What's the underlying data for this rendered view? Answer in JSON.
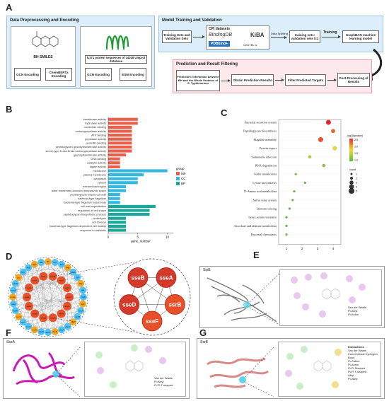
{
  "panel_labels": {
    "a": "A",
    "b": "B",
    "c": "C",
    "d": "D",
    "e": "E",
    "f": "F",
    "g": "G"
  },
  "panelA": {
    "prep_title": "Data Preprocessing and Encoding",
    "bh_smiles": "BH SMILES",
    "gcn1": "GCN Encoding",
    "chemberta": "ChemBERTa Encoding",
    "protein_seq": "5,371 protein sequences of 14028 Uniprot database",
    "gcn2": "GCN Encoding",
    "esm": "ESM Encoding",
    "train_title": "Model Training and Validation",
    "train_sets": "Training Sets and Validation Sets",
    "cpi": "CPI datasets",
    "bindingdb": "BindingDB",
    "pdbbind": "PDBbind+",
    "kiba": "KiBA",
    "castp": "CASTBL is",
    "data_split": "Data Splitting",
    "training": "Training",
    "ratio": "training sets: validation sets 8:2",
    "graphban": "GraphBAN machine learning model",
    "pred_title": "Prediction and Result Filtering",
    "prediction": "Prediction: Interaction between BH and the Whole Proteins of S. Typhimurium",
    "obtain": "Obtain Prediction Results",
    "filter": "Filter Predicted Targets",
    "post": "Post-Processing of Results"
  },
  "panelB": {
    "xlabel": "gene_number",
    "legend_title": "group",
    "legend": [
      "MF",
      "CC",
      "BP"
    ],
    "colors": {
      "MF": "#e8604c",
      "CC": "#35b8e0",
      "BP": "#1ba89a"
    },
    "xticks": [
      "0",
      "5",
      "10"
    ]
  },
  "panelC": {
    "legend1_title": "-log10(pvalue)",
    "legend2_title": "count",
    "legend1_ticks": [
      "2.5",
      "2.0",
      "1.5",
      "1.0"
    ],
    "legend2_ticks": [
      "1",
      "2",
      "3",
      "4",
      "5"
    ],
    "xticks": [
      "1",
      "2",
      "3",
      "4"
    ]
  },
  "chart_data": [
    {
      "type": "bar",
      "orientation": "horizontal",
      "xlabel": "gene_number",
      "xlim": [
        0,
        11
      ],
      "categories": [
        "transferase activity",
        "hydrolase activity",
        "nucleotide binding",
        "carboxypeptidase activity",
        "ATP binding",
        "peptidase activity",
        "penicillin binding",
        "peptidoglycan glycosyltransferase activity",
        "serine-type D-Ala-D-Ala carboxypeptidase activity",
        "glycosyltransferase activity",
        "DNA binding",
        "catalytic activity",
        "ligase activity",
        "membrane",
        "plasma membrane",
        "cytoplasm",
        "cytosol",
        "extracellular region",
        "outer membrane-bounded periplasmic space",
        "peptidoglycan-based cell wall",
        "bacterial-type flagellum",
        "bacterial-type flagellum basal body",
        "cell wall organization",
        "regulation of cell shape",
        "peptidoglycan biosynthetic process",
        "proteolysis",
        "cell division",
        "bacterial-type flagellum-dependent cell motility",
        "response to antibiotic"
      ],
      "series": [
        {
          "name": "group",
          "values": [
            5,
            5,
            4,
            4,
            4,
            4,
            4,
            4,
            4,
            3,
            2,
            2,
            2,
            10,
            6,
            5,
            5,
            3,
            3,
            2,
            2,
            2,
            8,
            7,
            7,
            3,
            3,
            3,
            3
          ]
        }
      ],
      "groups": [
        "MF",
        "MF",
        "MF",
        "MF",
        "MF",
        "MF",
        "MF",
        "MF",
        "MF",
        "MF",
        "MF",
        "MF",
        "MF",
        "CC",
        "CC",
        "CC",
        "CC",
        "CC",
        "CC",
        "CC",
        "CC",
        "CC",
        "BP",
        "BP",
        "BP",
        "BP",
        "BP",
        "BP",
        "BP"
      ]
    },
    {
      "type": "scatter",
      "xlim": [
        0.5,
        4.5
      ],
      "categories": [
        "Bacterial secretion system",
        "Peptidoglycan biosynthesis",
        "Flagellar assembly",
        "Protein export",
        "Salmonella infection",
        "RNA degradation",
        "Sulfur metabolism",
        "Lysine biosynthesis",
        "D-Amino acid metabolism",
        "Sulfur relay system",
        "Quorum sensing",
        "beta-Lactam resistance",
        "Ascorbate and aldarate metabolism",
        "Bacterial chemotaxis"
      ],
      "x": [
        3.7,
        4.0,
        3.2,
        4.1,
        2.5,
        3.4,
        1.6,
        2.2,
        1.5,
        1.4,
        1.2,
        1.0,
        1.0,
        1.0
      ],
      "neglog10p": [
        2.6,
        2.3,
        2.4,
        1.8,
        1.5,
        1.3,
        1.2,
        1.1,
        1.1,
        1.1,
        1.0,
        1.0,
        1.0,
        1.0
      ],
      "count": [
        4,
        3,
        4,
        3,
        2,
        2,
        1,
        1,
        1,
        1,
        1,
        1,
        1,
        1
      ]
    }
  ],
  "panelD": {
    "inner_nodes": [
      "sseB",
      "sseA",
      "ssrB",
      "sseF",
      "sseD"
    ],
    "outer_nodes": [
      "fliF",
      "fliG",
      "fliM",
      "flhB",
      "flhA",
      "fliP",
      "fliQ",
      "fliR",
      "flgB",
      "flgC",
      "mrcA",
      "mrcB",
      "ftsI",
      "pbpC",
      "dacA",
      "dacB",
      "dacC",
      "dacD",
      "murE",
      "murF",
      "secY",
      "secA",
      "ftsW",
      "rodA",
      "mrdA",
      "ponA",
      "yfeW",
      "prc",
      "fliN",
      "flhE",
      "flgG",
      "fliE"
    ],
    "mid_nodes": [
      "sseC",
      "sseE",
      "sseG",
      "sscA",
      "sscB",
      "ssaB",
      "ssaC",
      "ssaE",
      "ssaJ",
      "ssaK",
      "ssaL",
      "ssaM",
      "ssaV",
      "ssaN"
    ]
  },
  "panelE": {
    "protein": "SipB",
    "legend": [
      "Van der Waals",
      "Pi-Alkyl",
      "Pi-Anion",
      "Pi-Sulfur",
      "Alkyl",
      "Pi-Pi T-shaped"
    ]
  },
  "panelF": {
    "protein": "SseA",
    "legend": [
      "Van der Waals",
      "Pi-Alkyl",
      "Pi-Pi T-shaped",
      "Alkyl",
      "Pi-Sigma"
    ]
  },
  "panelG": {
    "protein": "SsrB",
    "legend_title": "Interactions",
    "legend": [
      "Van der Waals",
      "Conventional Hydrogen Bond",
      "Pi-Cation",
      "Pi-Anion",
      "Pi-Pi Stacked",
      "Pi-Pi T-shaped",
      "Alkyl",
      "Pi-Alkyl"
    ]
  }
}
